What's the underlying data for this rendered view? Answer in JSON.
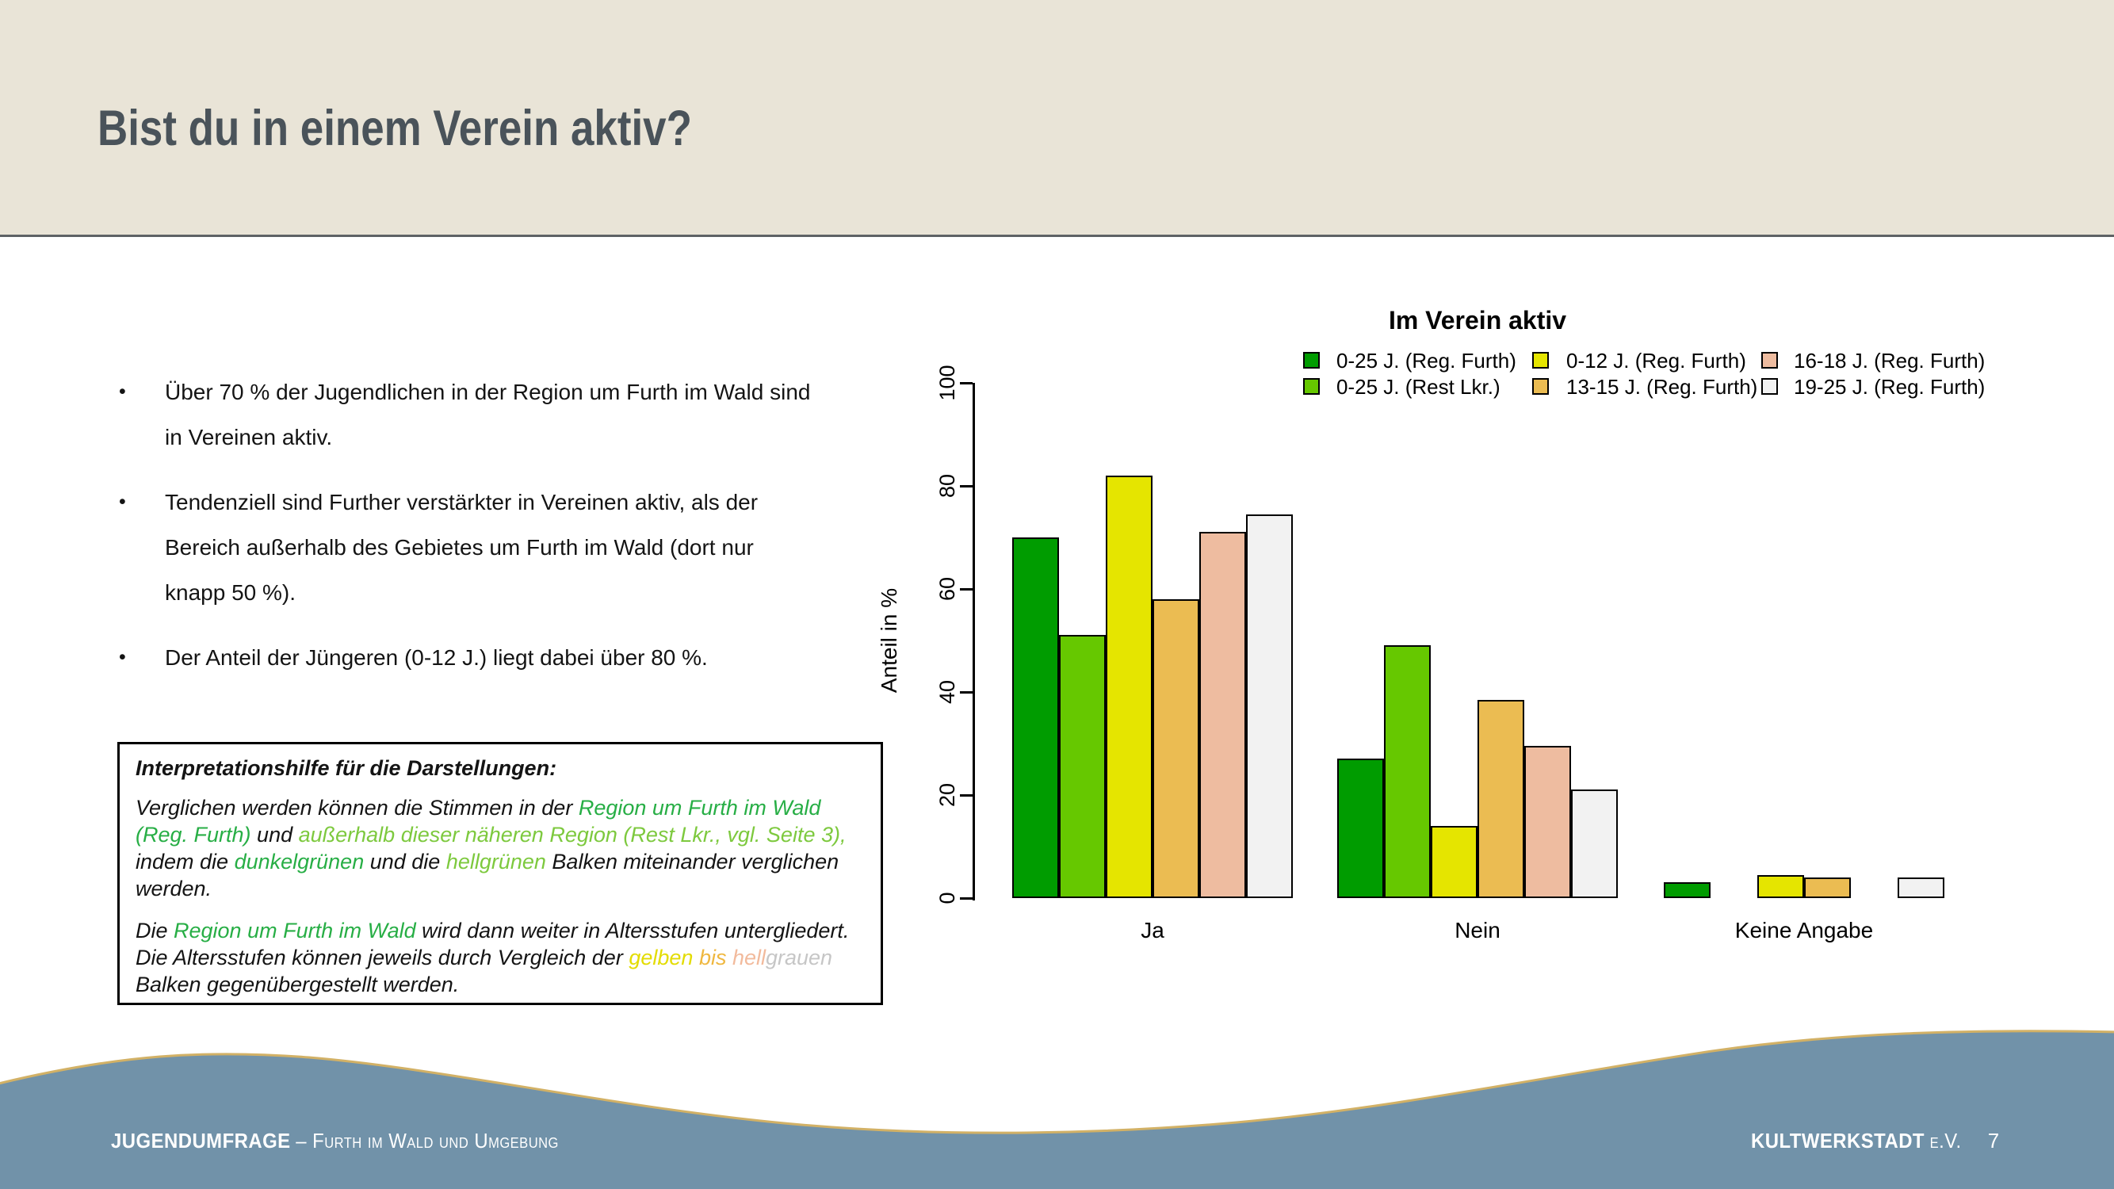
{
  "header": {
    "title": "Bist du in einem Verein aktiv?"
  },
  "bullet_char": "•",
  "bullets": [
    "Über 70 % der Jugendlichen in der Region um Furth im Wald sind in Vereinen aktiv.",
    "Tendenziell sind Further verstärkter in Vereinen aktiv, als der Bereich außerhalb des Gebietes um Furth im Wald (dort nur knapp 50 %).",
    "Der Anteil der Jüngeren (0-12 J.) liegt dabei über 80 %."
  ],
  "info_box": {
    "heading": "Interpretationshilfe für die Darstellungen:",
    "paragraph1": [
      {
        "t": "Verglichen werden können die Stimmen in der ",
        "c": "black"
      },
      {
        "t": "Region um Furth im Wald (Reg. Furth)",
        "c": "green"
      },
      {
        "t": " und ",
        "c": "black"
      },
      {
        "t": "außerhalb dieser näheren Region (Rest Lkr., vgl. Seite 3),",
        "c": "lightgreen"
      },
      {
        "t": " indem die ",
        "c": "black"
      },
      {
        "t": "dunkelgrünen",
        "c": "green"
      },
      {
        "t": " und die ",
        "c": "black"
      },
      {
        "t": "hellgrünen",
        "c": "lightgreen"
      },
      {
        "t": " Balken miteinander verglichen werden.",
        "c": "black"
      }
    ],
    "paragraph2": [
      {
        "t": "Die ",
        "c": "black"
      },
      {
        "t": "Region um Furth im Wald",
        "c": "green"
      },
      {
        "t": " wird dann weiter in Altersstufen untergliedert. Die Altersstufen können jeweils durch Vergleich der ",
        "c": "black"
      },
      {
        "t": "gelben",
        "c": "yellow"
      },
      {
        "t": " ",
        "c": "black"
      },
      {
        "t": "bis",
        "c": "orange"
      },
      {
        "t": " ",
        "c": "black"
      },
      {
        "t": "hell",
        "c": "salmon"
      },
      {
        "t": "grauen",
        "c": "gray"
      },
      {
        "t": " Balken gegenübergestellt werden.",
        "c": "black"
      }
    ]
  },
  "chart_data": {
    "type": "bar",
    "title": "Im Verein aktiv",
    "xlabel": "",
    "ylabel": "Anteil in %",
    "ylim": [
      0,
      100
    ],
    "yticks": [
      0,
      20,
      40,
      60,
      80,
      100
    ],
    "grid": false,
    "legend_position": "top-right, 2 rows x 3 columns",
    "categories": [
      "Ja",
      "Nein",
      "Keine Angabe"
    ],
    "series": [
      {
        "name": "0-25 J. (Reg. Furth)",
        "color": "#009C00",
        "values": [
          70,
          27,
          3
        ]
      },
      {
        "name": "0-25 J. (Rest Lkr.)",
        "color": "#66C800",
        "values": [
          51,
          49,
          0
        ]
      },
      {
        "name": "0-12 J. (Reg. Furth)",
        "color": "#E5E500",
        "values": [
          82,
          14,
          4.5
        ]
      },
      {
        "name": "13-15 J. (Reg. Furth)",
        "color": "#EBBC52",
        "values": [
          58,
          38.5,
          4
        ]
      },
      {
        "name": "16-18 J. (Reg. Furth)",
        "color": "#EEBCA0",
        "values": [
          71,
          29.5,
          0
        ]
      },
      {
        "name": "19-25 J. (Reg. Furth)",
        "color": "#F2F2F2",
        "values": [
          74.5,
          21,
          4
        ]
      }
    ]
  },
  "footer": {
    "left_primary": "JUGENDUMFRAGE",
    "left_secondary": "– Furth im Wald und Umgebung",
    "right_primary": "KULTWERKSTADT",
    "right_secondary": "e.V.",
    "page_number": "7"
  },
  "colors": {
    "header_bg": "#E9E4D7",
    "title_text": "#4A535A",
    "divider": "#5E6265",
    "footer_bg": "#7192A9",
    "wave_outline": "#D2B166",
    "footer_text": "#FFFFFF",
    "bar_border": "#000000",
    "text": {
      "black": "#141414",
      "green": "#27AE45",
      "lightgreen": "#7DC93E",
      "yellow": "#E3DC00",
      "orange": "#EFB73F",
      "salmon": "#F2BA9C",
      "gray": "#C6C6C6"
    }
  }
}
